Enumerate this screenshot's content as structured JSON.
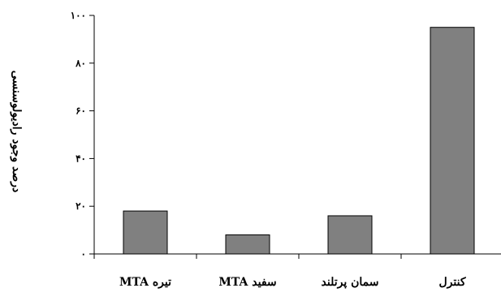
{
  "chart_data": {
    "type": "bar",
    "title": "",
    "xlabel": "",
    "ylabel": "درصد وجود رادیولوسنسی",
    "categories": [
      "MTA تیره",
      "MTA سفید",
      "سمان پرتلند",
      "کنترل"
    ],
    "values": [
      18,
      8,
      16,
      95
    ],
    "ylim": [
      0,
      100
    ],
    "yticks": [
      0,
      20,
      40,
      60,
      80,
      100
    ],
    "ytick_labels": [
      "۰",
      "۲۰",
      "۴۰",
      "۶۰",
      "۸۰",
      "۱۰۰"
    ],
    "grid": false,
    "legend": "none",
    "bar_color": "#808080",
    "bar_edge_color": "#000000"
  }
}
